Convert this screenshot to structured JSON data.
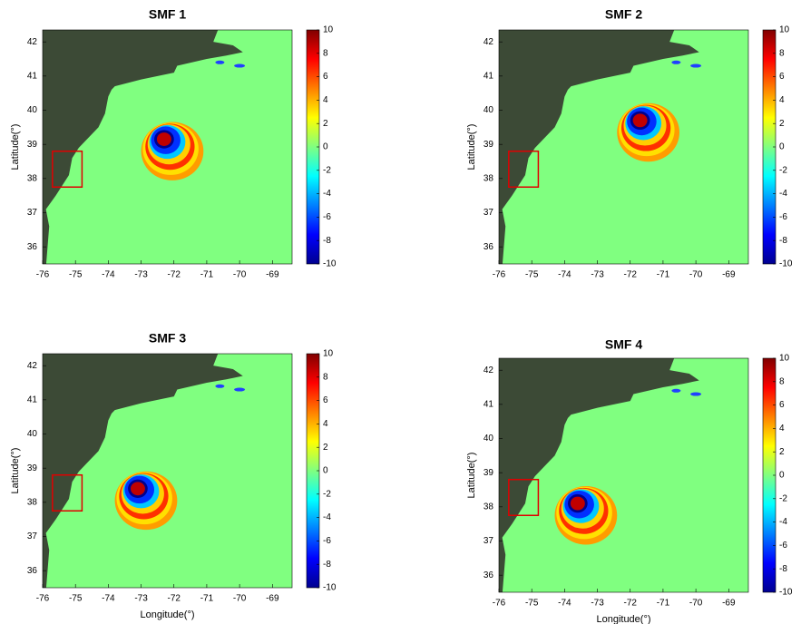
{
  "chart_data": [
    {
      "type": "heatmap",
      "title": "SMF 1",
      "ylabel": "Latitude(°)",
      "xlim": [
        -76,
        -68.4
      ],
      "ylim": [
        35.5,
        42.35
      ],
      "xticks": [
        -76,
        -75,
        -74,
        -73,
        -72,
        -71,
        -70,
        -69
      ],
      "yticks": [
        36,
        37,
        38,
        39,
        40,
        41,
        42
      ],
      "colormap": "jet",
      "clim": [
        -10,
        10
      ],
      "cticks": [
        -10,
        -8,
        -6,
        -4,
        -2,
        0,
        2,
        4,
        6,
        8,
        10
      ],
      "source_center": [
        -72.3,
        39.15
      ],
      "region": {
        "xlim": [
          -75.7,
          -74.8
        ],
        "ylim": [
          37.75,
          38.8
        ],
        "color": "#e00000"
      }
    },
    {
      "type": "heatmap",
      "title": "SMF 2",
      "ylabel": "Latitude(°)",
      "xlim": [
        -76,
        -68.4
      ],
      "ylim": [
        35.5,
        42.35
      ],
      "xticks": [
        -76,
        -75,
        -74,
        -73,
        -72,
        -71,
        -70,
        -69
      ],
      "yticks": [
        36,
        37,
        38,
        39,
        40,
        41,
        42
      ],
      "colormap": "jet",
      "clim": [
        -10,
        10
      ],
      "cticks": [
        -10,
        -8,
        -6,
        -4,
        -2,
        0,
        2,
        4,
        6,
        8,
        10
      ],
      "source_center": [
        -71.7,
        39.7
      ],
      "region": {
        "xlim": [
          -75.7,
          -74.8
        ],
        "ylim": [
          37.75,
          38.8
        ],
        "color": "#e00000"
      }
    },
    {
      "type": "heatmap",
      "title": "SMF 3",
      "ylabel": "Latitude(°)",
      "xlabel": "Longitude(°)",
      "xlim": [
        -76,
        -68.4
      ],
      "ylim": [
        35.5,
        42.35
      ],
      "xticks": [
        -76,
        -75,
        -74,
        -73,
        -72,
        -71,
        -70,
        -69
      ],
      "yticks": [
        36,
        37,
        38,
        39,
        40,
        41,
        42
      ],
      "colormap": "jet",
      "clim": [
        -10,
        10
      ],
      "cticks": [
        -10,
        -8,
        -6,
        -4,
        -2,
        0,
        2,
        4,
        6,
        8,
        10
      ],
      "source_center": [
        -73.1,
        38.4
      ],
      "region": {
        "xlim": [
          -75.7,
          -74.8
        ],
        "ylim": [
          37.75,
          38.8
        ],
        "color": "#e00000"
      }
    },
    {
      "type": "heatmap",
      "title": "SMF 4",
      "ylabel": "Latitude(°)",
      "xlabel": "Longitude(°)",
      "xlim": [
        -76,
        -68.4
      ],
      "ylim": [
        35.5,
        42.35
      ],
      "xticks": [
        -76,
        -75,
        -74,
        -73,
        -72,
        -71,
        -70,
        -69
      ],
      "yticks": [
        36,
        37,
        38,
        39,
        40,
        41,
        42
      ],
      "colormap": "jet",
      "clim": [
        -10,
        10
      ],
      "cticks": [
        -10,
        -8,
        -6,
        -4,
        -2,
        0,
        2,
        4,
        6,
        8,
        10
      ],
      "source_center": [
        -73.6,
        38.1
      ],
      "region": {
        "xlim": [
          -75.7,
          -74.8
        ],
        "ylim": [
          37.75,
          38.8
        ],
        "color": "#e00000"
      }
    }
  ]
}
